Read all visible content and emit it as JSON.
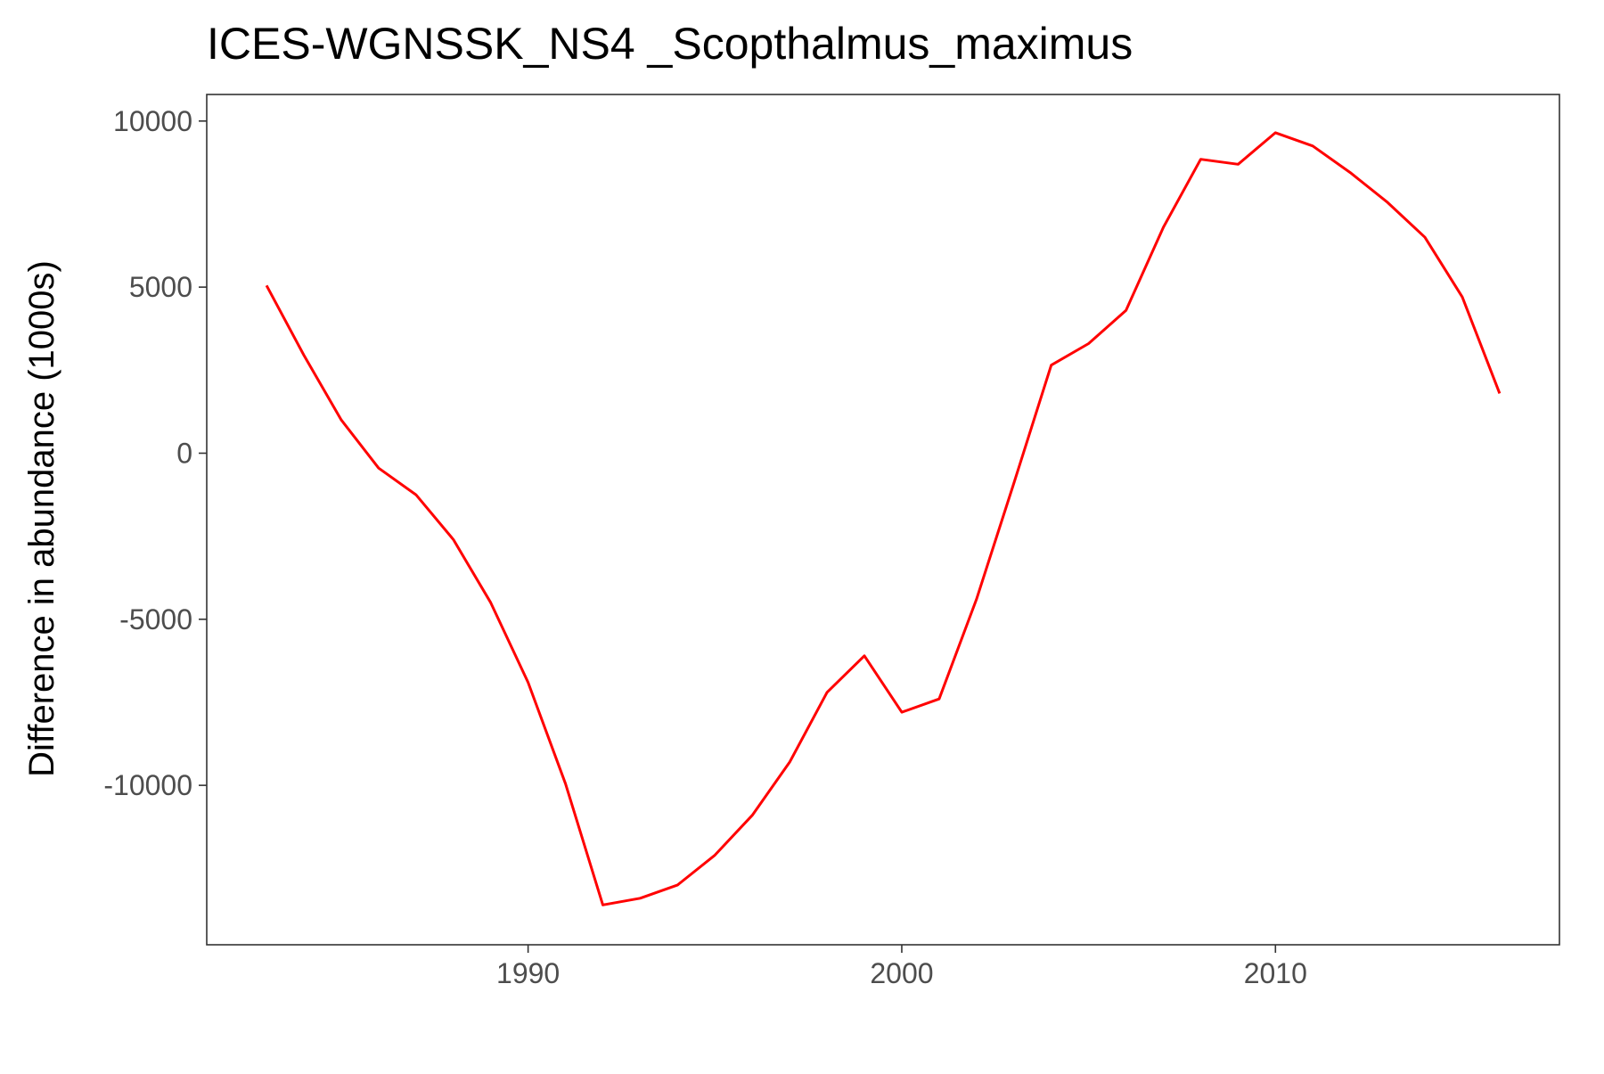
{
  "chart_data": {
    "type": "line",
    "title": "ICES-WGNSSK_NS4 _Scopthalmus_maximus",
    "xlabel": "",
    "ylabel": "Difference in abundance (1000s)",
    "xlim": [
      1981.4,
      2017.6
    ],
    "ylim": [
      -14800,
      10800
    ],
    "x_ticks": [
      1990,
      2000,
      2010
    ],
    "x_tick_labels": [
      "1990",
      "2000",
      "2010"
    ],
    "y_ticks": [
      10000,
      5000,
      0,
      -5000,
      -10000
    ],
    "y_tick_labels": [
      "10000",
      "5000",
      "0",
      "-5000",
      "-10000"
    ],
    "grid": false,
    "legend": "none",
    "series": [
      {
        "color": "#ff0000",
        "x": [
          1983,
          1984,
          1985,
          1986,
          1987,
          1988,
          1989,
          1990,
          1991,
          1992,
          1993,
          1994,
          1995,
          1996,
          1997,
          1998,
          1999,
          2000,
          2001,
          2002,
          2003,
          2004,
          2005,
          2006,
          2007,
          2008,
          2009,
          2010,
          2011,
          2012,
          2013,
          2014,
          2015,
          2016
        ],
        "y": [
          5050,
          2950,
          1000,
          -450,
          -1250,
          -2600,
          -4500,
          -6900,
          -9950,
          -13600,
          -13400,
          -13000,
          -12100,
          -10900,
          -9300,
          -7200,
          -6100,
          -7800,
          -7400,
          -4400,
          -900,
          2650,
          3300,
          4300,
          6800,
          8850,
          8700,
          9650,
          9250,
          8450,
          7550,
          6500,
          4700,
          1800
        ]
      }
    ]
  }
}
